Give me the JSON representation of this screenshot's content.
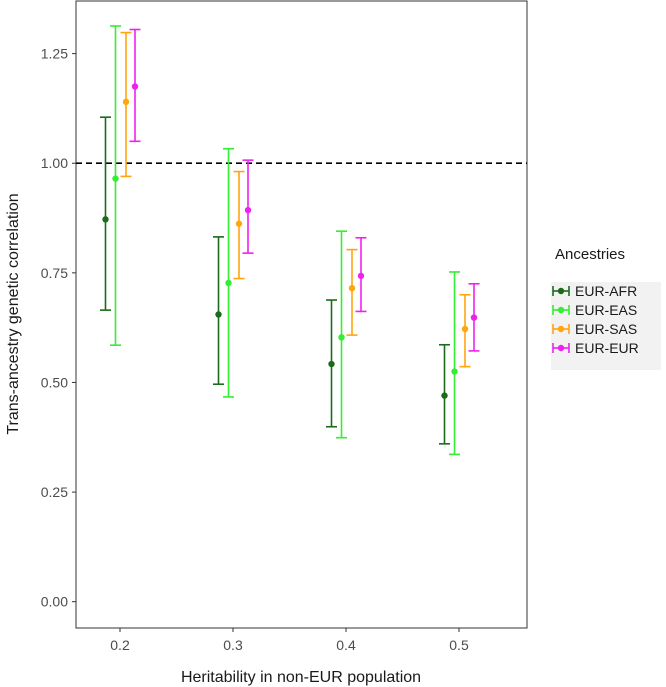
{
  "chart_data": {
    "type": "errorbar",
    "xlabel": "Heritability in non-EUR population",
    "ylabel": "Trans-ancestry genetic correlation",
    "categories": [
      "0.2",
      "0.3",
      "0.4",
      "0.5"
    ],
    "ylim": [
      -0.06,
      1.37
    ],
    "yticks": [
      "0.00",
      "0.25",
      "0.50",
      "0.75",
      "1.00",
      "1.25"
    ],
    "yticks_values": [
      0,
      0.25,
      0.5,
      0.75,
      1.0,
      1.25
    ],
    "reference_line": 1.0,
    "legend_title": "Ancestries",
    "legend_position": "right",
    "series": [
      {
        "name": "EUR-AFR",
        "color": "#1b6b1b",
        "mean": [
          0.872,
          0.655,
          0.542,
          0.47
        ],
        "lower": [
          0.665,
          0.496,
          0.399,
          0.36
        ],
        "upper": [
          1.105,
          0.832,
          0.688,
          0.586
        ]
      },
      {
        "name": "EUR-EAS",
        "color": "#33ee33",
        "mean": [
          0.965,
          0.727,
          0.603,
          0.525
        ],
        "lower": [
          0.585,
          0.467,
          0.374,
          0.336
        ],
        "upper": [
          1.313,
          1.033,
          0.845,
          0.752
        ]
      },
      {
        "name": "EUR-SAS",
        "color": "#ffa510",
        "mean": [
          1.14,
          0.862,
          0.715,
          0.622
        ],
        "lower": [
          0.97,
          0.737,
          0.608,
          0.536
        ],
        "upper": [
          1.298,
          0.981,
          0.803,
          0.7
        ]
      },
      {
        "name": "EUR-EUR",
        "color": "#ee22ee",
        "mean": [
          1.175,
          0.893,
          0.743,
          0.648
        ],
        "lower": [
          1.05,
          0.795,
          0.662,
          0.572
        ],
        "upper": [
          1.305,
          1.007,
          0.83,
          0.725
        ]
      }
    ]
  }
}
